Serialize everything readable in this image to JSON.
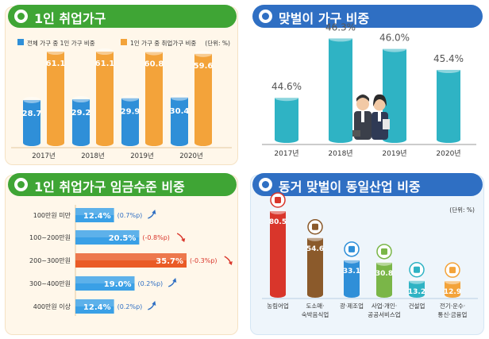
{
  "panels": {
    "p1": {
      "title": "1인 취업가구"
    },
    "p2": {
      "title": "맞벌이 가구 비중"
    },
    "p3": {
      "title": "1인 취업가구 임금수준 비중"
    },
    "p4": {
      "title": "동거 맞벌이 동일산업 비중"
    }
  },
  "colors": {
    "green": "#3fa535",
    "blue": "#2f6fc3",
    "bar_blue": "#2f8fd8",
    "bar_orange": "#f3a33a",
    "teal": "#2fb3c4"
  },
  "chart_data": [
    {
      "type": "bar",
      "categories": [
        "2017년",
        "2018년",
        "2019년",
        "2020년"
      ],
      "series": [
        {
          "name": "전체 가구 중 1인 가구 비중",
          "values": [
            28.7,
            29.2,
            29.9,
            30.4
          ]
        },
        {
          "name": "1인 가구 중 취업가구 비중",
          "values": [
            61.1,
            61.1,
            60.8,
            59.6
          ]
        }
      ],
      "unit": "(단위: %)",
      "labels_series1": [
        "28.7",
        "29.2",
        "29.9",
        "30.4"
      ],
      "labels_series2": [
        "61.1",
        "61.1",
        "60.8",
        "59.6"
      ],
      "legend": "top"
    },
    {
      "type": "bar",
      "categories": [
        "2017년",
        "2018년",
        "2019년",
        "2020년"
      ],
      "values": [
        44.6,
        46.3,
        46.0,
        45.4
      ],
      "labels": [
        "44.6%",
        "46.3%",
        "46.0%",
        "45.4%"
      ]
    },
    {
      "type": "bar",
      "orientation": "horizontal",
      "categories": [
        "100만원 미만",
        "100~200만원",
        "200~300만원",
        "300~400만원",
        "400만원 이상"
      ],
      "values": [
        12.4,
        20.5,
        35.7,
        19.0,
        12.4
      ],
      "labels": [
        "12.4%",
        "20.5%",
        "35.7%",
        "19.0%",
        "12.4%"
      ],
      "changes": [
        "(0.7%p)",
        "(-0.8%p)",
        "(-0.3%p)",
        "(0.2%p)",
        "(0.2%p)"
      ],
      "highlight": "200~300만원"
    },
    {
      "type": "bar",
      "categories": [
        "농림어업",
        "도소매·\n숙박음식업",
        "광·제조업",
        "사업·개인·\n공공서비스업",
        "건설업",
        "전기·운수·\n통신·금융업"
      ],
      "values": [
        80.5,
        54.6,
        33.1,
        30.8,
        13.2,
        12.9
      ],
      "labels": [
        "80.5",
        "54.6",
        "33.1",
        "30.8",
        "13.2",
        "12.9"
      ],
      "unit": "(단위: %)",
      "colors": [
        "#d9362b",
        "#8b5a2b",
        "#2f8fd8",
        "#7ab648",
        "#2fb3c4",
        "#f3a33a"
      ]
    }
  ]
}
